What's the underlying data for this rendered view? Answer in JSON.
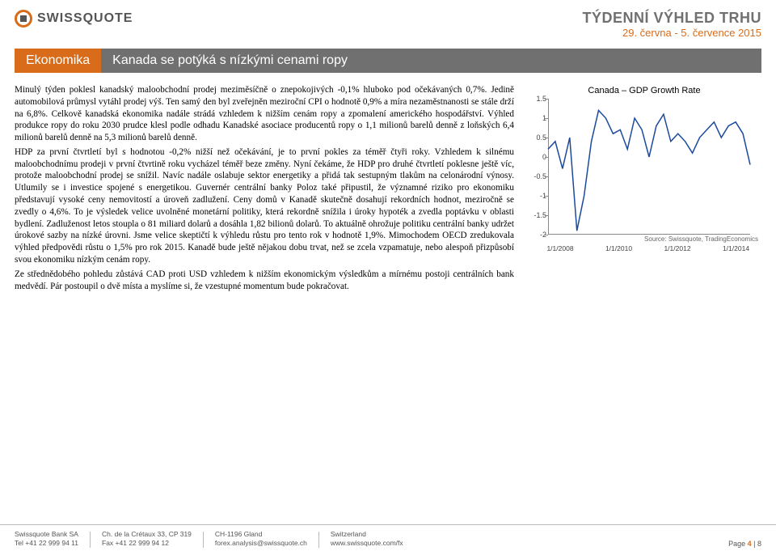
{
  "header": {
    "brand": "SWISSQUOTE",
    "report_title": "TÝDENNÍ VÝHLED TRHU",
    "report_date": "29. června - 5. července 2015",
    "brand_color": "#d96c1a"
  },
  "banner": {
    "section_label": "Ekonomika",
    "headline": "Kanada se potýká s nízkými cenami ropy",
    "left_bg": "#d96c1a",
    "right_bg": "#707070"
  },
  "article": {
    "paragraphs": [
      "Minulý týden poklesl kanadský maloobchodní prodej meziměsíčně o znepokojivých -0,1% hluboko pod očekávaných 0,7%. Jedině automobilová průmysl vytáhl prodej výš. Ten samý den byl zveřejněn meziroční CPI o hodnotě 0,9% a míra nezaměstnanosti se stále drží na 6,8%. Celkově kanadská ekonomika nadále strádá vzhledem k nižším cenám ropy a zpomalení amerického hospodářství. Výhled produkce ropy do roku 2030 prudce klesl podle odhadu Kanadské asociace producentů ropy o 1,1 milionů barelů denně z loňských 6,4 milionů barelů denně na 5,3 milionů barelů denně.",
      "HDP za první čtvrtletí byl s hodnotou -0,2% nižší než očekávání, je to první pokles za téměř čtyři roky. Vzhledem k silnému maloobchodnímu prodeji v první čtvrtině roku vycházel téměř beze změny. Nyní čekáme, že HDP pro druhé čtvrtletí poklesne ještě víc, protože maloobchodní prodej se snížil. Navíc nadále oslabuje sektor energetiky a přidá tak sestupným tlakům na celonárodní výnosy. Utlumily se i investice spojené s energetikou. Guvernér centrální banky Poloz také připustil, že významné riziko pro ekonomiku představují vysoké ceny nemovitostí a úroveň zadlužení. Ceny domů v Kanadě skutečně dosahují rekordních hodnot, meziročně se zvedly o 4,6%. To je výsledek velice uvolněné monetární politiky, která rekordně snížila i úroky hypoték a zvedla poptávku v oblasti bydlení. Zadluženost letos stoupla o 81 miliard dolarů a dosáhla 1,82 bilionů dolarů. To aktuálně ohrožuje politiku centrální banky udržet úrokové sazby na nízké úrovni. Jsme velice skeptičtí k výhledu růstu pro tento rok v hodnotě 1,9%. Mimochodem OECD zredukovala výhled předpovědi růstu o 1,5% pro rok 2015. Kanadě bude ještě nějakou dobu trvat, než se zcela vzpamatuje, nebo alespoň přizpůsobí svou ekonomiku nízkým cenám ropy.",
      "Ze střednědobého pohledu zůstává CAD proti USD vzhledem k nižším ekonomickým výsledkům a mírnému postoji centrálních bank medvědí. Pár postoupil o dvě místa a myslíme si, že vzestupné momentum bude pokračovat."
    ]
  },
  "chart": {
    "title": "Canada – GDP Growth Rate",
    "type": "line",
    "ylim": [
      -2,
      1.5
    ],
    "ytick_step": 0.5,
    "ylabels": [
      "1.5",
      "1",
      "0.5",
      "0",
      "-0.5",
      "-1",
      "-1.5",
      "-2"
    ],
    "xlabels": [
      "1/1/2008",
      "1/1/2010",
      "1/1/2012",
      "1/1/2014"
    ],
    "x_positions_pct": [
      6,
      35,
      64,
      93
    ],
    "series_color": "#1a4a9c",
    "line_width": 1.5,
    "background_color": "#ffffff",
    "grid_color": "#888888",
    "source": "Source: Swissquote, TradingEconomics",
    "points_y": [
      0.2,
      0.4,
      -0.3,
      0.5,
      -1.9,
      -1.0,
      0.4,
      1.2,
      1.0,
      0.6,
      0.7,
      0.2,
      1.0,
      0.7,
      0.0,
      0.8,
      1.1,
      0.4,
      0.6,
      0.4,
      0.1,
      0.5,
      0.7,
      0.9,
      0.5,
      0.8,
      0.9,
      0.6,
      -0.2
    ]
  },
  "footer": {
    "col1_line1": "Swissquote Bank SA",
    "col1_line2": "Tel +41 22 999 94 11",
    "col2_line1": "Ch. de la Crétaux 33, CP 319",
    "col2_line2": "Fax +41 22 999 94 12",
    "col3_line1": "CH-1196 Gland",
    "col3_line2": "forex.analysis@swissquote.ch",
    "col4_line1": "Switzerland",
    "col4_line2": "www.swissquote.com/fx",
    "page_current": "4",
    "page_total": "8"
  }
}
